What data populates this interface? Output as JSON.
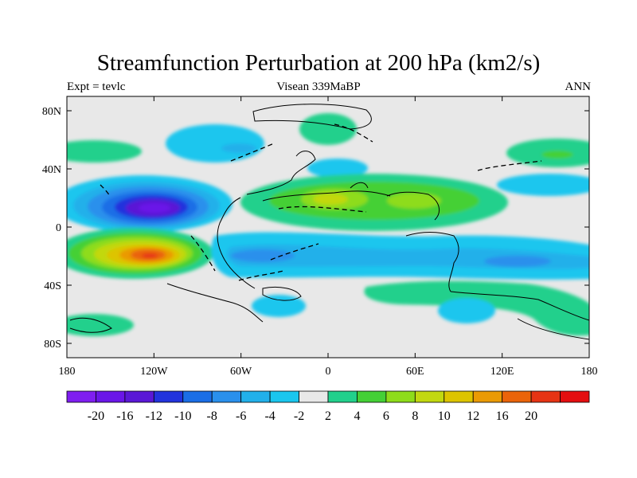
{
  "title": "Streamfunction Perturbation at 200 hPa (km2/s)",
  "left_label": "Expt = tevlc",
  "center_label": "Visean 339MaBP",
  "right_label": "ANN",
  "x_ticks": [
    "180",
    "120W",
    "60W",
    "0",
    "60E",
    "120E",
    "180"
  ],
  "y_ticks": [
    "80N",
    "40N",
    "0",
    "40S",
    "80S"
  ],
  "colorbar": {
    "colors": [
      "#7f1ef0",
      "#6a16e8",
      "#5a18d6",
      "#2233dd",
      "#1a6ee6",
      "#2a90ec",
      "#22b0ea",
      "#1ac6ee",
      "#e8e8e8",
      "#22d08c",
      "#44d036",
      "#8edc1a",
      "#c2d810",
      "#ddc400",
      "#ea9a04",
      "#ea640a",
      "#e63414",
      "#e40e10"
    ],
    "labels": [
      "-20",
      "-16",
      "-12",
      "-10",
      "-8",
      "-6",
      "-4",
      "-2",
      "2",
      "4",
      "6",
      "8",
      "10",
      "12",
      "16",
      "20"
    ]
  }
}
